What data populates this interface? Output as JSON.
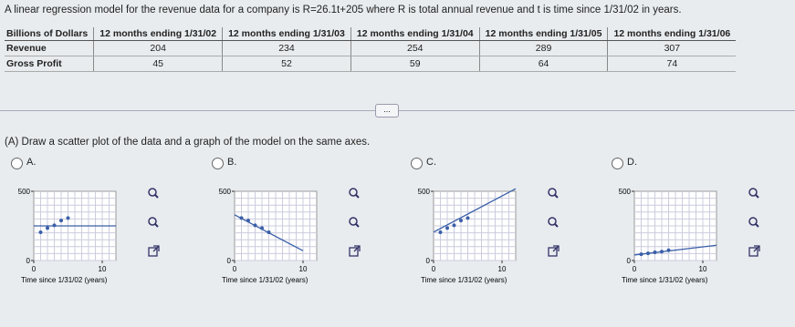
{
  "problem": {
    "text": "A linear regression model for the revenue data for a company is R=26.1t+205 where R is total annual revenue and t is time since 1/31/02 in years."
  },
  "table": {
    "header": [
      "Billions of Dollars",
      "12 months ending 1/31/02",
      "12 months ending 1/31/03",
      "12 months ending 1/31/04",
      "12 months ending 1/31/05",
      "12 months ending 1/31/06"
    ],
    "rows": [
      [
        "Revenue",
        204,
        234,
        254,
        289,
        307
      ],
      [
        "Gross Profit",
        45,
        52,
        59,
        64,
        74
      ]
    ]
  },
  "more_button": "...",
  "question": "(A) Draw a scatter plot of the data and a graph of the model on the same axes.",
  "options": [
    {
      "label": "A.",
      "chart": {
        "type": "scatter",
        "xlim": [
          0,
          12
        ],
        "ylim": [
          0,
          500
        ],
        "xticks": [
          0,
          10
        ],
        "yticks": [
          0,
          500
        ],
        "xlabel": "Time since 1/31/02 (years)",
        "x": [
          1,
          2,
          3,
          4,
          5
        ],
        "y": [
          204,
          234,
          254,
          289,
          307
        ],
        "line_x": [
          0,
          12
        ],
        "line_y": [
          250,
          250
        ],
        "color": "#3a5fa8"
      }
    },
    {
      "label": "B.",
      "chart": {
        "type": "scatter",
        "xlim": [
          0,
          12
        ],
        "ylim": [
          0,
          500
        ],
        "xticks": [
          0,
          10
        ],
        "yticks": [
          0,
          500
        ],
        "xlabel": "Time since 1/31/02 (years)",
        "x": [
          1,
          2,
          3,
          4,
          5
        ],
        "y": [
          307,
          289,
          254,
          234,
          204
        ],
        "line_x": [
          0,
          10
        ],
        "line_y": [
          330,
          70
        ],
        "color": "#3a5fa8"
      }
    },
    {
      "label": "C.",
      "chart": {
        "type": "scatter",
        "xlim": [
          0,
          12
        ],
        "ylim": [
          0,
          500
        ],
        "xticks": [
          0,
          10
        ],
        "yticks": [
          0,
          500
        ],
        "xlabel": "Time since 1/31/02 (years)",
        "x": [
          1,
          2,
          3,
          4,
          5
        ],
        "y": [
          204,
          234,
          254,
          289,
          307
        ],
        "line_x": [
          0,
          12
        ],
        "line_y": [
          205,
          518.2
        ],
        "color": "#3a5fa8"
      }
    },
    {
      "label": "D.",
      "chart": {
        "type": "scatter",
        "xlim": [
          0,
          12
        ],
        "ylim": [
          0,
          500
        ],
        "xticks": [
          0,
          10
        ],
        "yticks": [
          0,
          500
        ],
        "xlabel": "Time since 1/31/02 (years)",
        "x": [
          1,
          2,
          3,
          4,
          5
        ],
        "y": [
          45,
          52,
          59,
          64,
          74
        ],
        "line_x": [
          0,
          12
        ],
        "line_y": [
          40,
          110
        ],
        "color": "#3a5fa8"
      }
    }
  ]
}
